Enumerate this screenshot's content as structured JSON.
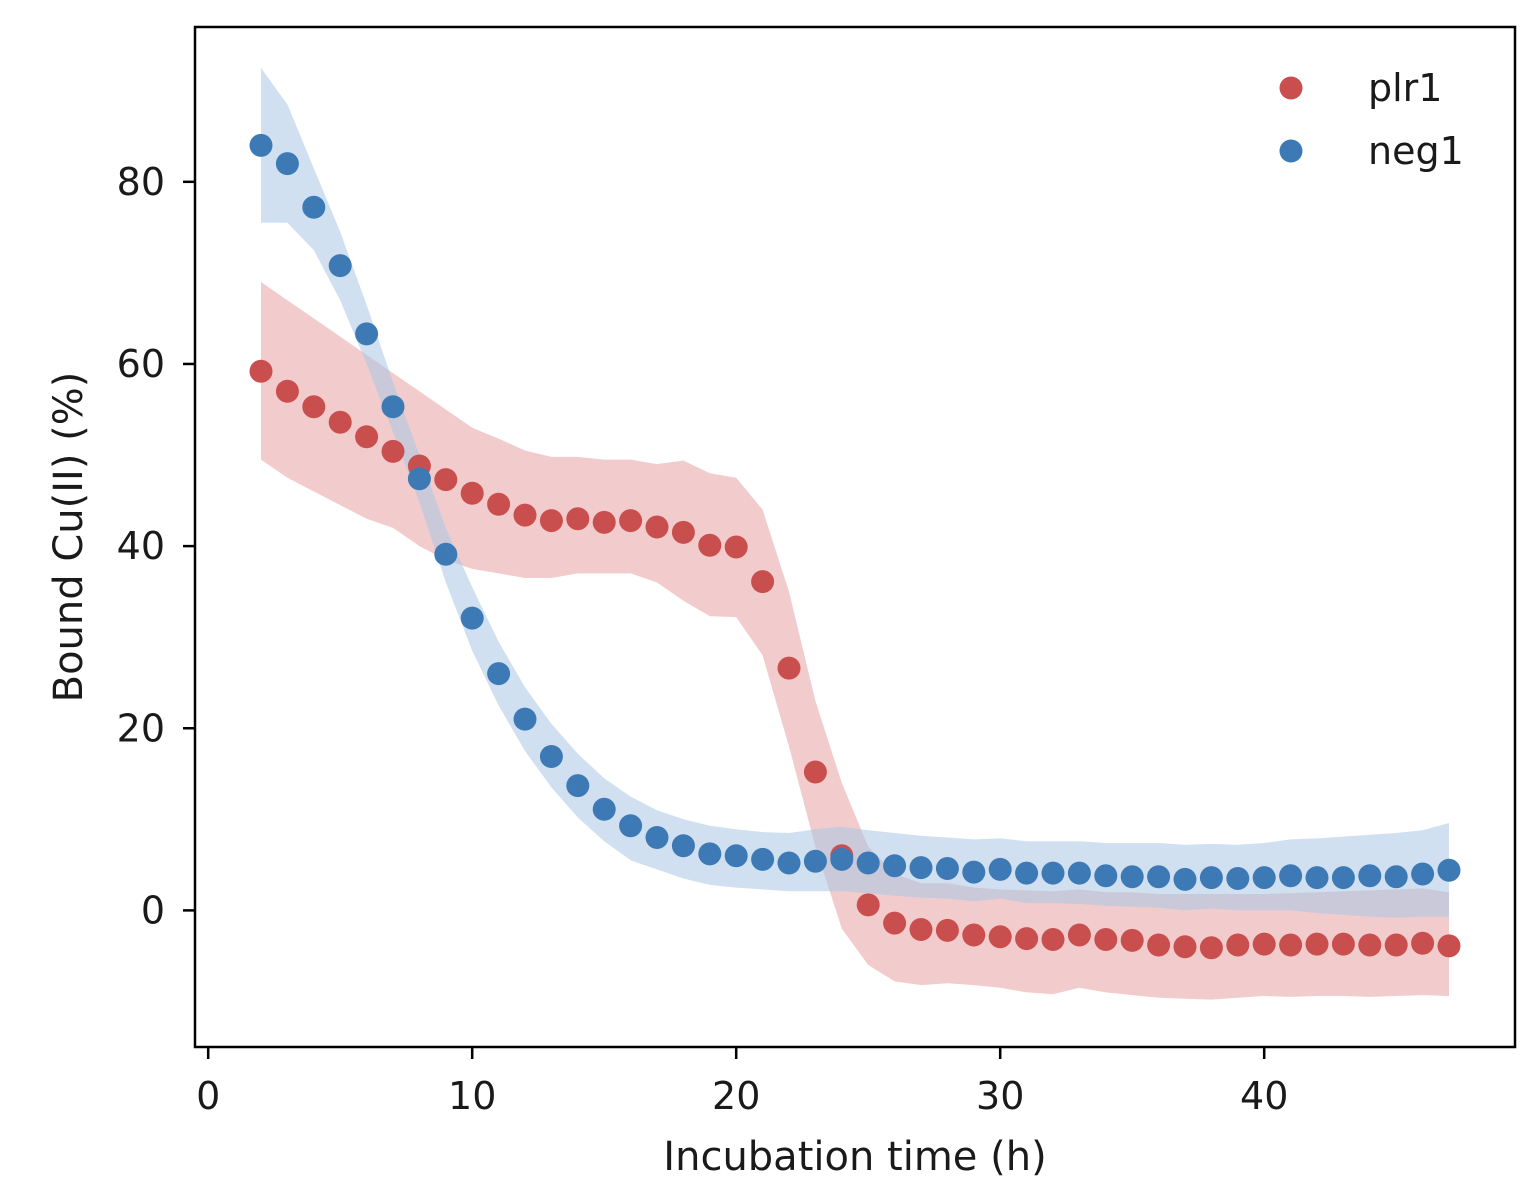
{
  "chart_data": {
    "type": "scatter",
    "xlabel": "Incubation time (h)",
    "ylabel": "Bound Cu(II) (%)",
    "xlim": [
      -0.5,
      49.5
    ],
    "ylim": [
      -15,
      97
    ],
    "x_ticks": [
      0,
      10,
      20,
      30,
      40
    ],
    "y_ticks": [
      0,
      20,
      40,
      60,
      80
    ],
    "grid": false,
    "legend_position": "top-right",
    "x": [
      2,
      3,
      4,
      5,
      6,
      7,
      8,
      9,
      10,
      11,
      12,
      13,
      14,
      15,
      16,
      17,
      18,
      19,
      20,
      21,
      22,
      23,
      24,
      25,
      26,
      27,
      28,
      29,
      30,
      31,
      32,
      33,
      34,
      35,
      36,
      37,
      38,
      39,
      40,
      41,
      42,
      43,
      44,
      45,
      46,
      47
    ],
    "series": [
      {
        "name": "plr1",
        "color": "#c94f4f",
        "band_color": "#e8a3a3",
        "values": [
          59.2,
          57.0,
          55.3,
          53.6,
          52.0,
          50.4,
          48.8,
          47.3,
          45.8,
          44.6,
          43.4,
          42.8,
          43.0,
          42.6,
          42.8,
          42.1,
          41.5,
          40.1,
          39.9,
          36.1,
          26.6,
          15.2,
          6.0,
          0.6,
          -1.4,
          -2.1,
          -2.2,
          -2.7,
          -2.9,
          -3.1,
          -3.2,
          -2.7,
          -3.2,
          -3.3,
          -3.8,
          -4.0,
          -4.1,
          -3.8,
          -3.7,
          -3.8,
          -3.7,
          -3.7,
          -3.8,
          -3.8,
          -3.6,
          -3.9
        ],
        "band_upper": [
          69.0,
          67.0,
          65.0,
          63.0,
          61.0,
          59.0,
          57.0,
          55.0,
          53.0,
          51.8,
          50.5,
          49.8,
          49.8,
          49.5,
          49.5,
          49.0,
          49.4,
          48.0,
          47.5,
          44.0,
          35.0,
          23.0,
          14.0,
          7.0,
          4.0,
          3.0,
          3.0,
          2.5,
          2.3,
          2.2,
          2.1,
          2.3,
          2.0,
          2.0,
          1.8,
          1.8,
          1.8,
          1.8,
          1.8,
          1.9,
          2.0,
          2.1,
          2.2,
          2.3,
          2.4,
          2.0
        ],
        "band_lower": [
          49.5,
          47.5,
          46.0,
          44.5,
          43.0,
          42.0,
          40.0,
          38.5,
          37.5,
          37.0,
          36.5,
          36.5,
          37.0,
          37.0,
          37.0,
          36.0,
          34.0,
          32.3,
          32.2,
          28.0,
          18.0,
          7.0,
          -2.0,
          -6.0,
          -7.8,
          -8.2,
          -8.0,
          -8.2,
          -8.5,
          -9.0,
          -9.2,
          -8.5,
          -9.0,
          -9.3,
          -9.6,
          -9.7,
          -9.8,
          -9.6,
          -9.4,
          -9.5,
          -9.4,
          -9.4,
          -9.5,
          -9.4,
          -9.3,
          -9.4
        ]
      },
      {
        "name": "neg1",
        "color": "#3d7ab5",
        "band_color": "#a9c7e3",
        "values": [
          84.0,
          82.0,
          77.2,
          70.8,
          63.3,
          55.3,
          47.4,
          39.1,
          32.1,
          26.0,
          21.0,
          16.9,
          13.7,
          11.1,
          9.3,
          8.0,
          7.1,
          6.2,
          6.0,
          5.6,
          5.2,
          5.4,
          5.6,
          5.2,
          4.9,
          4.7,
          4.6,
          4.2,
          4.5,
          4.1,
          4.1,
          4.1,
          3.8,
          3.7,
          3.7,
          3.4,
          3.6,
          3.5,
          3.6,
          3.8,
          3.6,
          3.6,
          3.8,
          3.7,
          4.0,
          4.4
        ],
        "band_upper": [
          92.5,
          88.5,
          81.5,
          74.5,
          66.5,
          58.0,
          50.0,
          42.0,
          35.5,
          29.5,
          24.5,
          20.5,
          17.2,
          14.5,
          12.5,
          11.0,
          10.0,
          9.3,
          8.9,
          8.6,
          8.5,
          8.9,
          9.2,
          8.8,
          8.5,
          8.2,
          8.0,
          7.8,
          7.9,
          7.6,
          7.6,
          7.6,
          7.4,
          7.4,
          7.4,
          7.2,
          7.3,
          7.2,
          7.4,
          7.8,
          7.9,
          8.1,
          8.3,
          8.5,
          8.8,
          9.6
        ],
        "band_lower": [
          75.5,
          75.5,
          72.5,
          67.0,
          60.0,
          52.5,
          44.8,
          36.0,
          28.5,
          22.5,
          17.5,
          13.5,
          10.2,
          7.6,
          5.5,
          4.5,
          3.5,
          2.8,
          2.5,
          2.3,
          2.1,
          2.1,
          2.1,
          1.9,
          1.6,
          1.4,
          1.3,
          1.0,
          1.3,
          0.8,
          0.8,
          0.7,
          0.5,
          0.4,
          0.3,
          0.0,
          0.2,
          0.0,
          0.0,
          0.0,
          -0.3,
          -0.5,
          -0.7,
          -0.8,
          -0.7,
          -0.7
        ]
      }
    ]
  }
}
